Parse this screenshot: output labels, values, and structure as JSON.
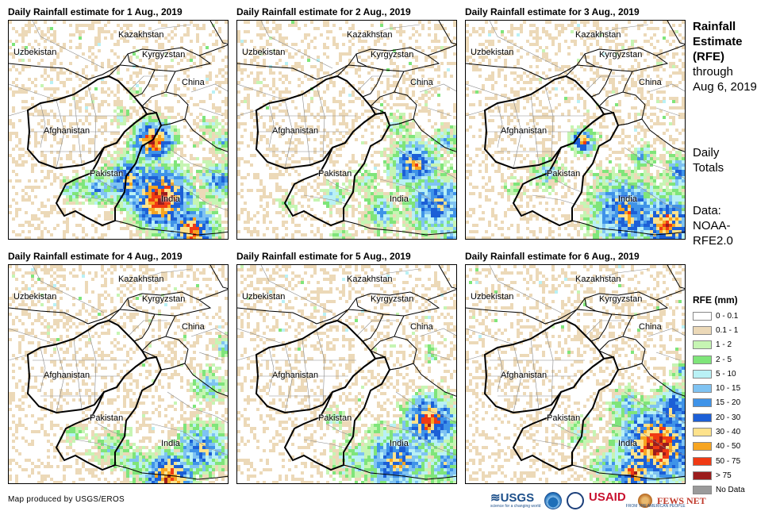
{
  "panels": [
    {
      "title": "Daily Rainfall estimate for 1 Aug., 2019"
    },
    {
      "title": "Daily Rainfall estimate for 2 Aug., 2019"
    },
    {
      "title": "Daily Rainfall estimate for 3 Aug., 2019"
    },
    {
      "title": "Daily Rainfall estimate for 4 Aug., 2019"
    },
    {
      "title": "Daily Rainfall estimate for 5 Aug., 2019"
    },
    {
      "title": "Daily Rainfall estimate for 6 Aug., 2019"
    }
  ],
  "map_labels": {
    "kazakhstan": "Kazakhstan",
    "uzbekistan": "Uzbekistan",
    "kyrgyzstan": "Kyrgyzstan",
    "china": "China",
    "afghanistan": "Afghanistan",
    "pakistan": "Pakistan",
    "india": "India"
  },
  "side": {
    "title_line1": "Rainfall",
    "title_line2": "Estimate",
    "title_line3": "(RFE)",
    "through": "through",
    "date": "Aug 6, 2019",
    "daily1": "Daily",
    "daily2": "Totals",
    "data1": "Data:",
    "data2": "NOAA-",
    "data3": "RFE2.0"
  },
  "legend": {
    "title": "RFE (mm)",
    "items": [
      {
        "label": "0 - 0.1",
        "color": "#ffffff"
      },
      {
        "label": "0.1 - 1",
        "color": "#ecd9b8"
      },
      {
        "label": "1 - 2",
        "color": "#c6f5b3"
      },
      {
        "label": "2 - 5",
        "color": "#7fe57a"
      },
      {
        "label": "5 - 10",
        "color": "#b9f1f5"
      },
      {
        "label": "10 - 15",
        "color": "#7fc3f2"
      },
      {
        "label": "15 - 20",
        "color": "#3f93e8"
      },
      {
        "label": "20 - 30",
        "color": "#1c5fd6"
      },
      {
        "label": "30 - 40",
        "color": "#fde28c"
      },
      {
        "label": "40 - 50",
        "color": "#f7a521"
      },
      {
        "label": "50 - 75",
        "color": "#f03a14"
      },
      {
        "label": "> 75",
        "color": "#9b1d1d"
      },
      {
        "label": "No Data",
        "color": "#9a9a9a"
      }
    ]
  },
  "footer": {
    "credit": "Map produced by USGS/EROS",
    "usgs": "≋USGS",
    "usgs_tagline": "science for a changing world",
    "usaid": "USAID",
    "usaid_tagline": "FROM THE AMERICAN PEOPLE",
    "fews": "FEWS NET"
  }
}
